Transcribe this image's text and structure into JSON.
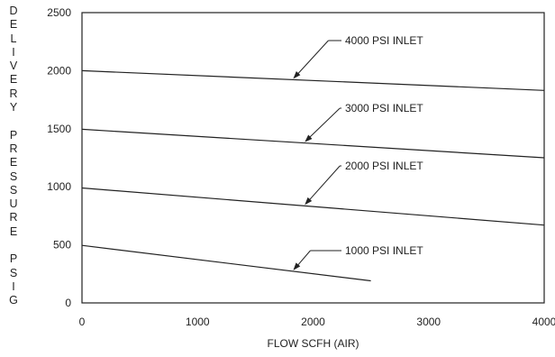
{
  "chart_data": {
    "type": "line",
    "title": "",
    "xlabel": "FLOW SCFH (AIR)",
    "ylabel": "DELIVERY PRESSURE PSIG",
    "xlim": [
      0,
      4000
    ],
    "ylim": [
      0,
      2500
    ],
    "xticks": [
      "0",
      "1000",
      "2000",
      "3000",
      "4000"
    ],
    "yticks": [
      "0",
      "500",
      "1000",
      "1500",
      "2000",
      "2500"
    ],
    "grid": false,
    "series": [
      {
        "name": "4000 PSI INLET",
        "x": [
          0,
          4000
        ],
        "y": [
          2000,
          1830
        ]
      },
      {
        "name": "3000 PSI INLET",
        "x": [
          0,
          4000
        ],
        "y": [
          1495,
          1250
        ]
      },
      {
        "name": "2000 PSI INLET",
        "x": [
          0,
          4000
        ],
        "y": [
          990,
          670
        ]
      },
      {
        "name": "1000 PSI INLET",
        "x": [
          0,
          2500
        ],
        "y": [
          495,
          190
        ]
      }
    ]
  }
}
